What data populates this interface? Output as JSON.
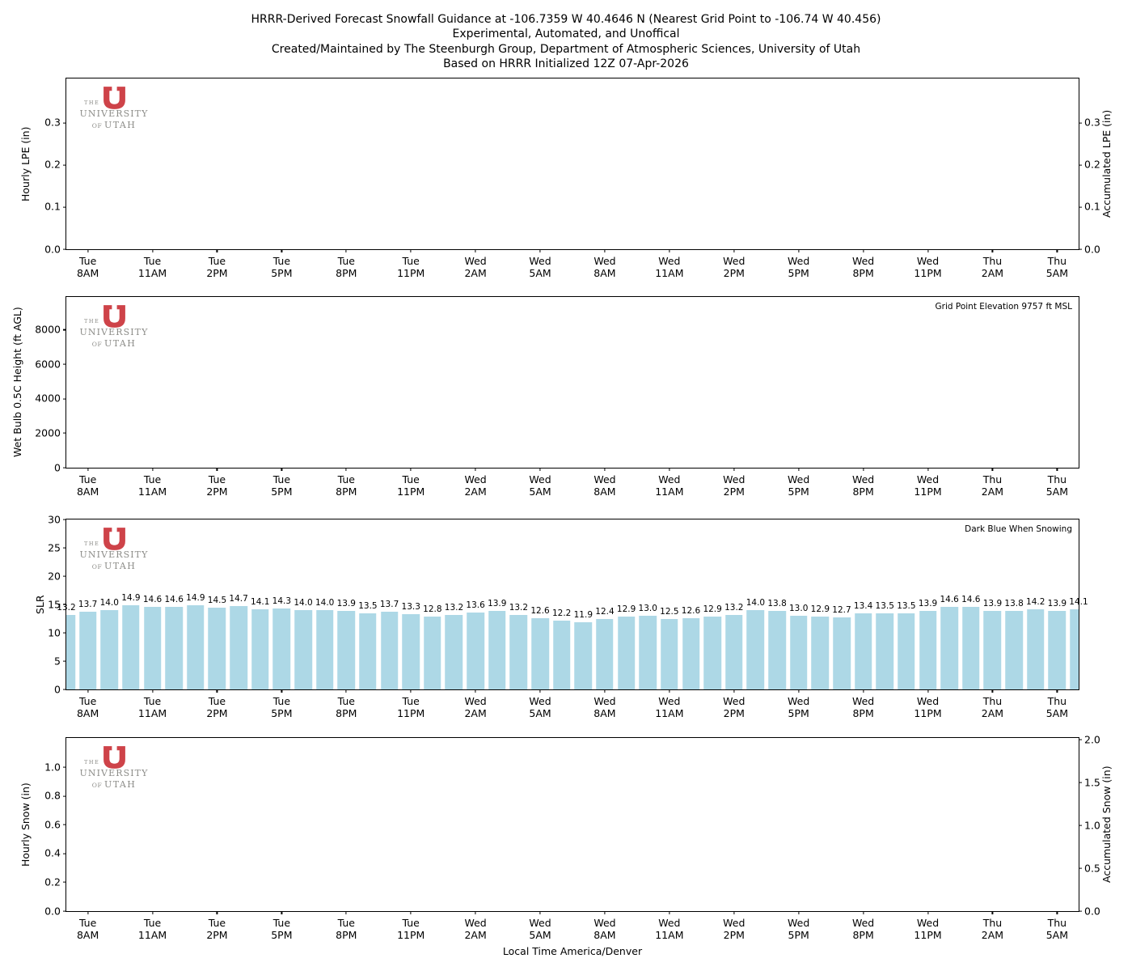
{
  "title": {
    "line1": "HRRR-Derived Forecast Snowfall Guidance at -106.7359 W 40.4646 N (Nearest Grid Point to -106.74 W 40.456)",
    "line2": "Experimental, Automated, and Unoffical",
    "line3": "Created/Maintained by The Steenburgh Group, Department of Atmospheric Sciences, University of Utah",
    "line4": "Based on HRRR Initialized 12Z 07-Apr-2026"
  },
  "logo": {
    "the": "THE",
    "university": "UNIVERSITY",
    "of": "OF",
    "utah": "UTAH",
    "u_color": "#CE4349",
    "text_color": "#8D8D89"
  },
  "colors": {
    "bar": "#ADD8E6",
    "spine": "#000000",
    "background": "#FFFFFF"
  },
  "xaxis": {
    "label": "Local Time America/Denver",
    "hours_span": 47,
    "tick_hours": [
      1,
      4,
      7,
      10,
      13,
      16,
      19,
      22,
      25,
      28,
      31,
      34,
      37,
      40,
      43,
      46
    ],
    "ticks": [
      {
        "day": "Tue",
        "time": "8AM"
      },
      {
        "day": "Tue",
        "time": "11AM"
      },
      {
        "day": "Tue",
        "time": "2PM"
      },
      {
        "day": "Tue",
        "time": "5PM"
      },
      {
        "day": "Tue",
        "time": "8PM"
      },
      {
        "day": "Tue",
        "time": "11PM"
      },
      {
        "day": "Wed",
        "time": "2AM"
      },
      {
        "day": "Wed",
        "time": "5AM"
      },
      {
        "day": "Wed",
        "time": "8AM"
      },
      {
        "day": "Wed",
        "time": "11AM"
      },
      {
        "day": "Wed",
        "time": "2PM"
      },
      {
        "day": "Wed",
        "time": "5PM"
      },
      {
        "day": "Wed",
        "time": "8PM"
      },
      {
        "day": "Wed",
        "time": "11PM"
      },
      {
        "day": "Thu",
        "time": "2AM"
      },
      {
        "day": "Thu",
        "time": "5AM"
      }
    ]
  },
  "chart_data": [
    {
      "id": "lpe",
      "type": "bar",
      "panel": "Hourly LPE",
      "ylabel": "Hourly LPE (in)",
      "right_ylabel": "Accumulated LPE (in)",
      "ylim": [
        0,
        0.405
      ],
      "right_ylim": [
        0,
        0.405
      ],
      "yticks": [
        {
          "v": 0,
          "label": "0.0"
        },
        {
          "v": 0.1,
          "label": "0.1"
        },
        {
          "v": 0.2,
          "label": "0.2"
        },
        {
          "v": 0.3,
          "label": "0.3"
        }
      ],
      "right_yticks": [
        {
          "v": 0,
          "label": "0.0"
        },
        {
          "v": 0.1,
          "label": "0.1"
        },
        {
          "v": 0.2,
          "label": "0.2"
        },
        {
          "v": 0.3,
          "label": "0.3"
        }
      ],
      "values": [],
      "note": "empty panel - no liquid precipitation equivalent shown"
    },
    {
      "id": "wetbulb",
      "type": "line",
      "panel": "Wet Bulb 0.5C Height",
      "ylabel": "Wet Bulb 0.5C Height (ft AGL)",
      "ylim": [
        0,
        9900
      ],
      "yticks": [
        {
          "v": 0,
          "label": "0"
        },
        {
          "v": 2000,
          "label": "2000"
        },
        {
          "v": 4000,
          "label": "4000"
        },
        {
          "v": 6000,
          "label": "6000"
        },
        {
          "v": 8000,
          "label": "8000"
        }
      ],
      "annotation": "Grid Point Elevation 9757 ft MSL",
      "values": [],
      "note": "empty panel - no wet bulb height curve shown"
    },
    {
      "id": "slr",
      "type": "bar",
      "panel": "SLR",
      "ylabel": "SLR",
      "ylim": [
        0,
        30
      ],
      "yticks": [
        {
          "v": 0,
          "label": "0"
        },
        {
          "v": 5,
          "label": "5"
        },
        {
          "v": 10,
          "label": "10"
        },
        {
          "v": 15,
          "label": "15"
        },
        {
          "v": 20,
          "label": "20"
        },
        {
          "v": 25,
          "label": "25"
        },
        {
          "v": 30,
          "label": "30"
        }
      ],
      "annotation": "Dark Blue When Snowing",
      "bar_color": "#ADD8E6",
      "x_times": [
        "Tue 7AM",
        "Tue 8AM",
        "Tue 9AM",
        "Tue 10AM",
        "Tue 11AM",
        "Tue 12PM",
        "Tue 1PM",
        "Tue 2PM",
        "Tue 3PM",
        "Tue 4PM",
        "Tue 5PM",
        "Tue 6PM",
        "Tue 7PM",
        "Tue 8PM",
        "Tue 9PM",
        "Tue 10PM",
        "Tue 11PM",
        "Wed 12AM",
        "Wed 1AM",
        "Wed 2AM",
        "Wed 3AM",
        "Wed 4AM",
        "Wed 5AM",
        "Wed 6AM",
        "Wed 7AM",
        "Wed 8AM",
        "Wed 9AM",
        "Wed 10AM",
        "Wed 11AM",
        "Wed 12PM",
        "Wed 1PM",
        "Wed 2PM",
        "Wed 3PM",
        "Wed 4PM",
        "Wed 5PM",
        "Wed 6PM",
        "Wed 7PM",
        "Wed 8PM",
        "Wed 9PM",
        "Wed 10PM",
        "Wed 11PM",
        "Thu 12AM",
        "Thu 1AM",
        "Thu 2AM",
        "Thu 3AM",
        "Thu 4AM",
        "Thu 5AM",
        "Thu 6AM"
      ],
      "values": [
        13.2,
        13.7,
        14.0,
        14.9,
        14.6,
        14.6,
        14.9,
        14.5,
        14.7,
        14.1,
        14.3,
        14.0,
        14.0,
        13.9,
        13.5,
        13.7,
        13.3,
        12.8,
        13.2,
        13.6,
        13.9,
        13.2,
        12.6,
        12.2,
        11.9,
        12.4,
        12.9,
        13.0,
        12.5,
        12.6,
        12.9,
        13.2,
        14.0,
        13.8,
        13.0,
        12.9,
        12.7,
        13.4,
        13.5,
        13.5,
        13.9,
        14.6,
        14.6,
        13.9,
        13.8,
        14.2,
        13.9,
        14.1
      ]
    },
    {
      "id": "snow",
      "type": "bar",
      "panel": "Hourly Snow",
      "ylabel": "Hourly Snow (in)",
      "right_ylabel": "Accumulated Snow (in)",
      "ylim": [
        0,
        1.205
      ],
      "right_ylim": [
        0,
        2.02
      ],
      "yticks": [
        {
          "v": 0,
          "label": "0.0"
        },
        {
          "v": 0.2,
          "label": "0.2"
        },
        {
          "v": 0.4,
          "label": "0.4"
        },
        {
          "v": 0.6,
          "label": "0.6"
        },
        {
          "v": 0.8,
          "label": "0.8"
        },
        {
          "v": 1.0,
          "label": "1.0"
        }
      ],
      "right_yticks": [
        {
          "v": 0,
          "label": "0.0"
        },
        {
          "v": 0.5,
          "label": "0.5"
        },
        {
          "v": 1.0,
          "label": "1.0"
        },
        {
          "v": 1.5,
          "label": "1.5"
        },
        {
          "v": 2.0,
          "label": "2.0"
        }
      ],
      "values": [],
      "note": "empty panel - no snowfall shown"
    }
  ]
}
